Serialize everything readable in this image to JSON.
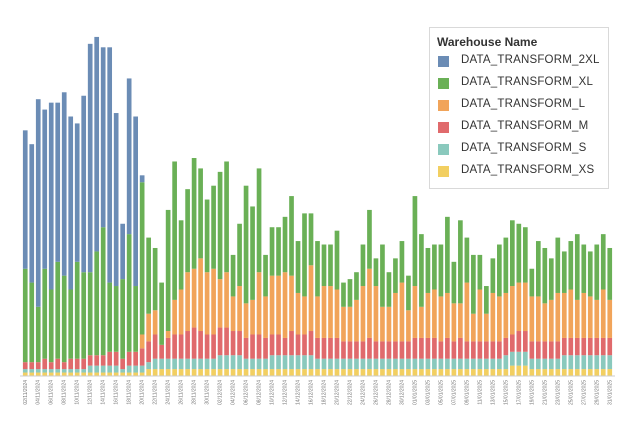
{
  "colors": {
    "DATA_TRANSFORM_2XL": "#6b8cb5",
    "DATA_TRANSFORM_XL": "#6ab056",
    "DATA_TRANSFORM_L": "#f1a45a",
    "DATA_TRANSFORM_M": "#e06a6c",
    "DATA_TRANSFORM_S": "#8ac9bd",
    "DATA_TRANSFORM_XS": "#f2cf61"
  },
  "legend": {
    "title": "Warehouse Name",
    "items": [
      "DATA_TRANSFORM_2XL",
      "DATA_TRANSFORM_XL",
      "DATA_TRANSFORM_L",
      "DATA_TRANSFORM_M",
      "DATA_TRANSFORM_S",
      "DATA_TRANSFORM_XS"
    ]
  },
  "chart_data": {
    "type": "bar",
    "stacked": true,
    "title": "",
    "xlabel": "",
    "ylabel": "",
    "ylim": [
      0,
      100
    ],
    "grid": false,
    "legend_position": "top-right",
    "categories": [
      "02/11/2024",
      "03/11/2024",
      "04/11/2024",
      "05/11/2024",
      "06/11/2024",
      "07/11/2024",
      "08/11/2024",
      "09/11/2024",
      "10/11/2024",
      "11/11/2024",
      "12/11/2024",
      "13/11/2024",
      "14/11/2024",
      "15/11/2024",
      "16/11/2024",
      "17/11/2024",
      "18/11/2024",
      "19/11/2024",
      "20/11/2024",
      "21/11/2024",
      "22/11/2024",
      "23/11/2024",
      "24/11/2024",
      "25/11/2024",
      "26/11/2024",
      "27/11/2024",
      "28/11/2024",
      "29/11/2024",
      "30/11/2024",
      "01/12/2024",
      "02/12/2024",
      "03/12/2024",
      "04/12/2024",
      "05/12/2024",
      "06/12/2024",
      "07/12/2024",
      "08/12/2024",
      "09/12/2024",
      "10/12/2024",
      "11/12/2024",
      "12/12/2024",
      "13/12/2024",
      "14/12/2024",
      "15/12/2024",
      "16/12/2024",
      "17/12/2024",
      "18/12/2024",
      "19/12/2024",
      "20/12/2024",
      "21/12/2024",
      "22/12/2024",
      "23/12/2024",
      "24/12/2024",
      "25/12/2024",
      "26/12/2024",
      "27/12/2024",
      "28/12/2024",
      "29/12/2024",
      "30/12/2024",
      "31/12/2024",
      "01/01/2025",
      "02/01/2025",
      "03/01/2025",
      "04/01/2025",
      "05/01/2025",
      "06/01/2025",
      "07/01/2025",
      "08/01/2025",
      "09/01/2025",
      "10/01/2025",
      "11/01/2025",
      "12/01/2025",
      "13/01/2025",
      "14/01/2025",
      "15/01/2025",
      "16/01/2025",
      "17/01/2025",
      "18/01/2025",
      "19/01/2025",
      "20/01/2025",
      "21/01/2025",
      "22/01/2025",
      "23/01/2025",
      "24/01/2025",
      "25/01/2025",
      "26/01/2025",
      "27/01/2025",
      "28/01/2025",
      "29/01/2025",
      "30/01/2025",
      "31/01/2025"
    ],
    "series": [
      {
        "name": "DATA_TRANSFORM_2XL",
        "values": [
          40,
          40,
          60,
          46,
          54,
          46,
          53,
          50,
          40,
          51,
          66,
          62,
          52,
          68,
          50,
          16,
          45,
          49,
          2,
          0,
          0,
          0,
          0,
          0,
          0,
          0,
          0,
          0,
          0,
          0,
          0,
          0,
          0,
          0,
          0,
          0,
          0,
          0,
          0,
          0,
          0,
          0,
          0,
          0,
          0,
          0,
          0,
          0,
          0,
          0,
          0,
          0,
          0,
          0,
          0,
          0,
          0,
          0,
          0,
          0,
          0,
          0,
          0,
          0,
          0,
          0,
          0,
          0,
          0,
          0,
          0,
          0,
          0,
          0,
          0,
          0,
          0,
          0,
          0,
          0,
          0,
          0,
          0,
          0,
          0,
          0,
          0,
          0,
          0,
          0,
          0
        ]
      },
      {
        "name": "DATA_TRANSFORM_XL",
        "values": [
          27,
          23,
          16,
          26,
          21,
          28,
          25,
          20,
          28,
          25,
          24,
          30,
          37,
          20,
          19,
          23,
          34,
          19,
          44,
          22,
          18,
          18,
          35,
          40,
          20,
          24,
          32,
          26,
          21,
          24,
          31,
          32,
          12,
          18,
          34,
          27,
          30,
          12,
          14,
          14,
          16,
          23,
          15,
          24,
          15,
          16,
          12,
          12,
          17,
          7,
          8,
          8,
          12,
          17,
          8,
          18,
          10,
          10,
          12,
          10,
          26,
          21,
          13,
          13,
          15,
          22,
          12,
          24,
          13,
          17,
          10,
          8,
          10,
          15,
          16,
          19,
          17,
          16,
          8,
          16,
          16,
          12,
          16,
          12,
          14,
          19,
          14,
          13,
          16,
          16,
          15
        ]
      },
      {
        "name": "DATA_TRANSFORM_L",
        "values": [
          0,
          0,
          0,
          0,
          0,
          0,
          0,
          0,
          0,
          0,
          0,
          0,
          0,
          0,
          0,
          0,
          0,
          0,
          4,
          8,
          7,
          0,
          2,
          10,
          13,
          17,
          17,
          21,
          18,
          19,
          14,
          16,
          10,
          13,
          10,
          10,
          18,
          12,
          17,
          17,
          19,
          16,
          12,
          11,
          19,
          12,
          15,
          15,
          14,
          10,
          10,
          12,
          16,
          20,
          16,
          10,
          10,
          14,
          17,
          9,
          15,
          9,
          13,
          14,
          13,
          13,
          11,
          10,
          17,
          8,
          15,
          8,
          14,
          13,
          13,
          14,
          14,
          14,
          13,
          13,
          11,
          12,
          14,
          13,
          14,
          11,
          13,
          12,
          11,
          14,
          11
        ]
      },
      {
        "name": "DATA_TRANSFORM_M",
        "values": [
          2,
          2,
          2,
          3,
          2,
          3,
          2,
          3,
          3,
          3,
          3,
          3,
          3,
          4,
          4,
          3,
          4,
          4,
          5,
          6,
          7,
          4,
          6,
          7,
          7,
          8,
          9,
          8,
          7,
          7,
          8,
          8,
          7,
          7,
          6,
          7,
          7,
          6,
          6,
          6,
          5,
          7,
          6,
          6,
          7,
          6,
          6,
          6,
          6,
          5,
          5,
          5,
          5,
          6,
          5,
          5,
          5,
          5,
          5,
          5,
          6,
          6,
          6,
          6,
          5,
          6,
          5,
          6,
          5,
          5,
          5,
          5,
          5,
          5,
          5,
          5,
          6,
          6,
          5,
          5,
          5,
          5,
          5,
          5,
          5,
          5,
          5,
          5,
          5,
          5,
          5
        ]
      },
      {
        "name": "DATA_TRANSFORM_S",
        "values": [
          1,
          1,
          1,
          1,
          1,
          1,
          1,
          1,
          1,
          1,
          2,
          2,
          2,
          2,
          2,
          1,
          2,
          2,
          2,
          2,
          3,
          3,
          3,
          3,
          3,
          3,
          3,
          3,
          3,
          3,
          4,
          4,
          4,
          4,
          3,
          3,
          3,
          3,
          4,
          4,
          4,
          4,
          4,
          4,
          4,
          3,
          3,
          3,
          3,
          3,
          3,
          3,
          3,
          3,
          3,
          3,
          3,
          3,
          3,
          3,
          3,
          3,
          3,
          3,
          3,
          3,
          3,
          3,
          3,
          3,
          3,
          3,
          3,
          3,
          4,
          4,
          4,
          4,
          3,
          3,
          3,
          3,
          3,
          4,
          4,
          4,
          4,
          4,
          4,
          4,
          4
        ]
      },
      {
        "name": "DATA_TRANSFORM_XS",
        "values": [
          1,
          1,
          1,
          1,
          1,
          1,
          1,
          1,
          1,
          1,
          1,
          1,
          1,
          1,
          1,
          1,
          1,
          1,
          1,
          2,
          2,
          2,
          2,
          2,
          2,
          2,
          2,
          2,
          2,
          2,
          2,
          2,
          2,
          2,
          2,
          2,
          2,
          2,
          2,
          2,
          2,
          2,
          2,
          2,
          2,
          2,
          2,
          2,
          2,
          2,
          2,
          2,
          2,
          2,
          2,
          2,
          2,
          2,
          2,
          2,
          2,
          2,
          2,
          2,
          2,
          2,
          2,
          2,
          2,
          2,
          2,
          2,
          2,
          2,
          2,
          3,
          3,
          3,
          2,
          2,
          2,
          2,
          2,
          2,
          2,
          2,
          2,
          2,
          2,
          2,
          2
        ]
      }
    ]
  }
}
